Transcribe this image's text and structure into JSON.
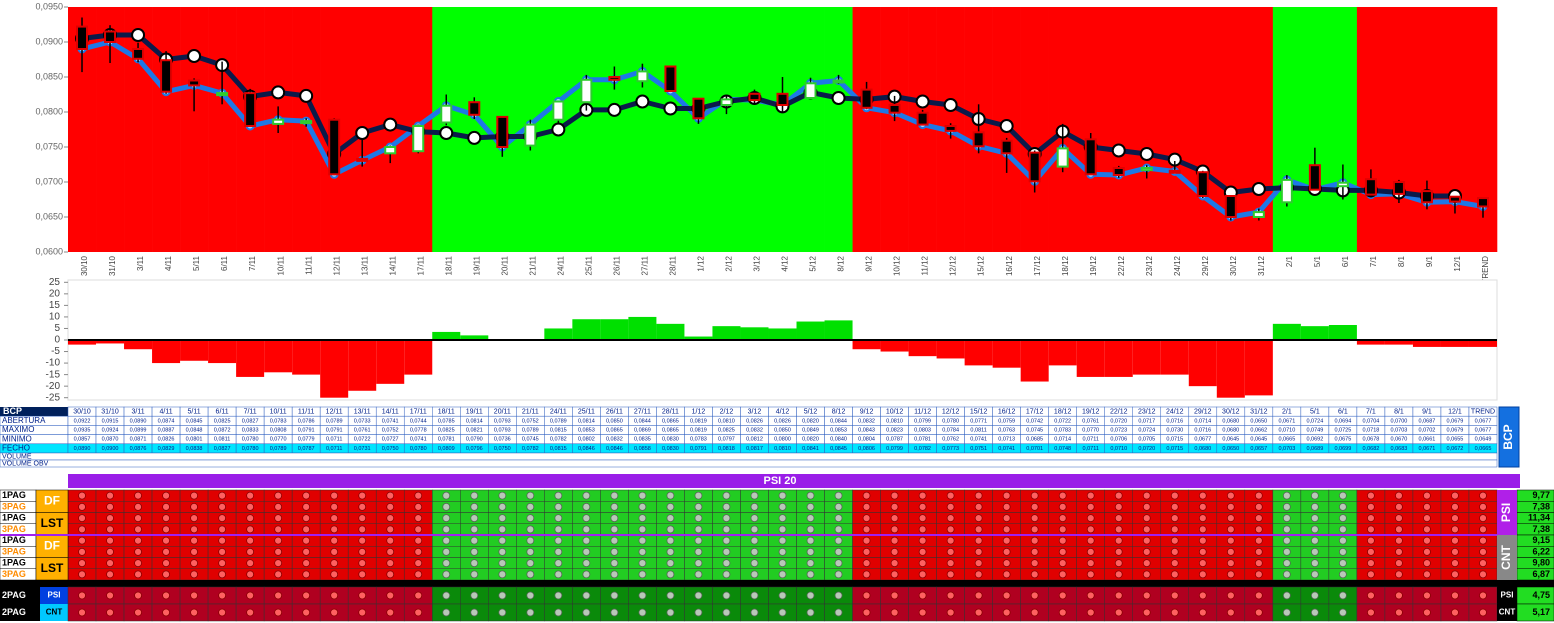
{
  "chart_data": [
    {
      "type": "candlestick",
      "categories": [
        "30/10",
        "31/10",
        "3/11",
        "4/11",
        "5/11",
        "6/11",
        "7/11",
        "10/11",
        "11/11",
        "12/11",
        "13/11",
        "14/11",
        "17/11",
        "18/11",
        "19/11",
        "20/11",
        "21/11",
        "24/11",
        "25/11",
        "26/11",
        "27/11",
        "28/11",
        "1/12",
        "2/12",
        "3/12",
        "4/12",
        "5/12",
        "8/12",
        "9/12",
        "10/12",
        "11/12",
        "12/12",
        "15/12",
        "16/12",
        "17/12",
        "18/12",
        "19/12",
        "22/12",
        "23/12",
        "24/12",
        "29/12",
        "30/12",
        "31/12",
        "2/1",
        "5/1",
        "6/1",
        "7/1",
        "8/1",
        "9/1",
        "12/1",
        "TREND"
      ],
      "series": [
        {
          "name": "ABERTURA",
          "values": [
            0.0922,
            0.0915,
            0.089,
            0.0874,
            0.0845,
            0.0825,
            0.0827,
            0.0783,
            0.0786,
            0.0789,
            0.0733,
            0.0741,
            0.0744,
            0.0785,
            0.0814,
            0.0793,
            0.0752,
            0.0789,
            0.0814,
            0.085,
            0.0844,
            0.0865,
            0.0819,
            0.081,
            0.0826,
            0.0826,
            0.082,
            0.0844,
            0.0832,
            0.081,
            0.0799,
            0.078,
            0.0771,
            0.0759,
            0.0742,
            0.0722,
            0.0761,
            0.072,
            0.0717,
            0.0716,
            0.0714,
            0.068,
            0.065,
            0.0671,
            0.0724,
            0.0694,
            0.0704,
            0.07,
            0.0687,
            0.0679,
            0.0677
          ],
          "value_labels": [
            "0,0922",
            "0,0915",
            "0,0890",
            "0,0874",
            "0,0845",
            "0,0825",
            "0,0827",
            "0,0783",
            "0,0786",
            "0,0789",
            "0,0733",
            "0,0741",
            "0,0744",
            "0,0785",
            "0,0814",
            "0,0793",
            "0,0752",
            "0,0789",
            "0,0814",
            "0,0850",
            "0,0844",
            "0,0865",
            "0,0819",
            "0,0810",
            "0,0826",
            "0,0826",
            "0,0820",
            "0,0844",
            "0,0832",
            "0,0810",
            "0,0799",
            "0,0780",
            "0,0771",
            "0,0759",
            "0,0742",
            "0,0722",
            "0,0761",
            "0,0720",
            "0,0717",
            "0,0716",
            "0,0714",
            "0,0680",
            "0,0650",
            "0,0671",
            "0,0724",
            "0,0694",
            "0,0704",
            "0,0700",
            "0,0687",
            "0,0679",
            "0,0677"
          ]
        },
        {
          "name": "MAXIMO",
          "values": [
            0.0935,
            0.0924,
            0.0899,
            0.0887,
            0.0848,
            0.0872,
            0.0833,
            0.0808,
            0.0791,
            0.0791,
            0.0761,
            0.0752,
            0.0778,
            0.0825,
            0.0821,
            0.0793,
            0.0789,
            0.0815,
            0.0853,
            0.0865,
            0.0869,
            0.0865,
            0.0819,
            0.0825,
            0.0832,
            0.085,
            0.0849,
            0.0853,
            0.0843,
            0.0823,
            0.0803,
            0.0784,
            0.0811,
            0.0763,
            0.0745,
            0.0783,
            0.077,
            0.0723,
            0.0724,
            0.073,
            0.0716,
            0.068,
            0.0662,
            0.071,
            0.0749,
            0.0725,
            0.0718,
            0.0703,
            0.0702,
            0.0679,
            0.0677
          ],
          "value_labels": [
            "0,0935",
            "0,0924",
            "0,0899",
            "0,0887",
            "0,0848",
            "0,0872",
            "0,0833",
            "0,0808",
            "0,0791",
            "0,0791",
            "0,0761",
            "0,0752",
            "0,0778",
            "0,0825",
            "0,0821",
            "0,0793",
            "0,0789",
            "0,0815",
            "0,0853",
            "0,0865",
            "0,0869",
            "0,0865",
            "0,0819",
            "0,0825",
            "0,0832",
            "0,0850",
            "0,0849",
            "0,0853",
            "0,0843",
            "0,0823",
            "0,0803",
            "0,0784",
            "0,0811",
            "0,0763",
            "0,0745",
            "0,0783",
            "0,0770",
            "0,0723",
            "0,0724",
            "0,0730",
            "0,0716",
            "0,0680",
            "0,0662",
            "0,0710",
            "0,0749",
            "0,0725",
            "0,0718",
            "0,0703",
            "0,0702",
            "0,0679",
            "0,0677"
          ]
        },
        {
          "name": "MINIMO",
          "values": [
            0.0857,
            0.087,
            0.0871,
            0.0826,
            0.0801,
            0.0811,
            0.078,
            0.077,
            0.0779,
            0.0711,
            0.0722,
            0.0727,
            0.0741,
            0.0781,
            0.079,
            0.0736,
            0.0745,
            0.0782,
            0.0802,
            0.0832,
            0.0835,
            0.083,
            0.0783,
            0.0797,
            0.0812,
            0.08,
            0.082,
            0.084,
            0.0804,
            0.0787,
            0.0781,
            0.0762,
            0.0741,
            0.0713,
            0.0685,
            0.0714,
            0.0711,
            0.0706,
            0.0705,
            0.0715,
            0.0677,
            0.0645,
            0.0645,
            0.0665,
            0.0692,
            0.0675,
            0.0678,
            0.067,
            0.0661,
            0.0655,
            0.0649
          ],
          "value_labels": [
            "0,0857",
            "0,0870",
            "0,0871",
            "0,0826",
            "0,0801",
            "0,0811",
            "0,0780",
            "0,0770",
            "0,0779",
            "0,0711",
            "0,0722",
            "0,0727",
            "0,0741",
            "0,0781",
            "0,0790",
            "0,0736",
            "0,0745",
            "0,0782",
            "0,0802",
            "0,0832",
            "0,0835",
            "0,0830",
            "0,0783",
            "0,0797",
            "0,0812",
            "0,0800",
            "0,0820",
            "0,0840",
            "0,0804",
            "0,0787",
            "0,0781",
            "0,0762",
            "0,0741",
            "0,0713",
            "0,0685",
            "0,0714",
            "0,0711",
            "0,0706",
            "0,0705",
            "0,0715",
            "0,0677",
            "0,0645",
            "0,0645",
            "0,0665",
            "0,0692",
            "0,0675",
            "0,0678",
            "0,0670",
            "0,0661",
            "0,0655",
            "0,0649"
          ]
        },
        {
          "name": "FECHO",
          "color": "#1e78e6",
          "values": [
            0.089,
            0.09,
            0.0876,
            0.0829,
            0.0838,
            0.0827,
            0.078,
            0.0789,
            0.0787,
            0.0711,
            0.0731,
            0.075,
            0.078,
            0.0809,
            0.0796,
            0.075,
            0.0782,
            0.0815,
            0.0846,
            0.0846,
            0.0858,
            0.083,
            0.0791,
            0.0818,
            0.0817,
            0.081,
            0.0841,
            0.0845,
            0.0806,
            0.0799,
            0.0782,
            0.0773,
            0.0751,
            0.0741,
            0.0701,
            0.0748,
            0.0711,
            0.071,
            0.072,
            0.0715,
            0.068,
            0.065,
            0.0657,
            0.0703,
            0.0689,
            0.0699,
            0.0682,
            0.0683,
            0.0671,
            0.0672,
            0.0665
          ],
          "value_labels": [
            "0,0890",
            "0,0900",
            "0,0876",
            "0,0829",
            "0,0838",
            "0,0827",
            "0,0780",
            "0,0789",
            "0,0787",
            "0,0711",
            "0,0731",
            "0,0750",
            "0,0780",
            "0,0809",
            "0,0796",
            "0,0750",
            "0,0782",
            "0,0815",
            "0,0846",
            "0,0846",
            "0,0858",
            "0,0830",
            "0,0791",
            "0,0818",
            "0,0817",
            "0,0810",
            "0,0841",
            "0,0845",
            "0,0806",
            "0,0799",
            "0,0782",
            "0,0773",
            "0,0751",
            "0,0741",
            "0,0701",
            "0,0748",
            "0,0711",
            "0,0710",
            "0,0720",
            "0,0715",
            "0,0680",
            "0,0650",
            "0,0657",
            "0,0703",
            "0,0689",
            "0,0699",
            "0,0682",
            "0,0683",
            "0,0671",
            "0,0672",
            "0,0665"
          ]
        }
      ],
      "trend_line": {
        "color": "#0b1a4a",
        "values": [
          0.0905,
          0.091,
          0.091,
          0.0875,
          0.088,
          0.0867,
          0.0822,
          0.0828,
          0.0823,
          0.074,
          0.077,
          0.0782,
          0.0772,
          0.077,
          0.0763,
          0.0765,
          0.0765,
          0.0775,
          0.0803,
          0.0803,
          0.0815,
          0.0805,
          0.0805,
          0.0815,
          0.082,
          0.0808,
          0.0828,
          0.082,
          0.0818,
          0.0822,
          0.0815,
          0.081,
          0.079,
          0.078,
          0.074,
          0.0772,
          0.075,
          0.0745,
          0.074,
          0.0732,
          0.0715,
          0.0685,
          0.069,
          0.0692,
          0.069,
          0.0688,
          0.0688,
          0.0685,
          0.068,
          0.068,
          null
        ]
      },
      "band_colors": [
        "#ff0000",
        "#ff0000",
        "#ff0000",
        "#ff0000",
        "#ff0000",
        "#ff0000",
        "#ff0000",
        "#ff0000",
        "#ff0000",
        "#ff0000",
        "#ff0000",
        "#ff0000",
        "#ff0000",
        "#00ff00",
        "#00ff00",
        "#00ff00",
        "#00ff00",
        "#00ff00",
        "#00ff00",
        "#00ff00",
        "#00ff00",
        "#00ff00",
        "#00ff00",
        "#00ff00",
        "#00ff00",
        "#00ff00",
        "#00ff00",
        "#00ff00",
        "#ff0000",
        "#ff0000",
        "#ff0000",
        "#ff0000",
        "#ff0000",
        "#ff0000",
        "#ff0000",
        "#ff0000",
        "#ff0000",
        "#ff0000",
        "#ff0000",
        "#ff0000",
        "#ff0000",
        "#ff0000",
        "#ff0000",
        "#00ff00",
        "#00ff00",
        "#00ff00",
        "#ff0000",
        "#ff0000",
        "#ff0000",
        "#ff0000",
        "#ff0000"
      ],
      "ylim": [
        0.06,
        0.095
      ],
      "yticks": [
        {
          "value": 0.095,
          "label": "0,0950"
        },
        {
          "value": 0.09,
          "label": "0,0900"
        },
        {
          "value": 0.085,
          "label": "0,0850"
        },
        {
          "value": 0.08,
          "label": "0,0800"
        },
        {
          "value": 0.075,
          "label": "0,0750"
        },
        {
          "value": 0.07,
          "label": "0,0700"
        },
        {
          "value": 0.065,
          "label": "0,0650"
        },
        {
          "value": 0.06,
          "label": "0,0600"
        }
      ]
    },
    {
      "type": "bar",
      "values": [
        -2,
        -1.5,
        -4,
        -10,
        -9,
        -10,
        -16,
        -14,
        -15,
        -25,
        -22,
        -19,
        -15,
        3.5,
        2,
        0,
        0,
        5,
        9,
        9,
        10,
        7,
        1.5,
        6,
        5.5,
        5,
        8,
        8.5,
        -4,
        -5,
        -7,
        -8,
        -11,
        -12,
        -18,
        -11,
        -16,
        -16,
        -15,
        -15,
        -20,
        -25,
        -24,
        7,
        6,
        6.5,
        -2,
        -2,
        -3,
        -3,
        -3
      ],
      "colors": {
        "positive": "#00e000",
        "negative": "#ff0000"
      },
      "ylim": [
        -26,
        26
      ],
      "yticks": [
        25,
        20,
        15,
        10,
        5,
        0,
        -5,
        -10,
        -15,
        -20,
        -25
      ]
    }
  ],
  "table": {
    "title": "BCP",
    "extra_rows": [
      "VOLUME",
      "VOLUME OBV"
    ],
    "side_label": "BCP"
  },
  "signals": {
    "title": "PSI 20",
    "rows": [
      "1PAG",
      "3PAG",
      "1PAG",
      "3PAG",
      "1PAG",
      "3PAG",
      "1PAG",
      "3PAG"
    ],
    "tags": [
      "DF",
      "LST",
      "DF",
      "LST"
    ],
    "values": [
      "9,77",
      "7,38",
      "11,34",
      "7,38",
      "9,15",
      "6,22",
      "9,80",
      "6,87"
    ],
    "side_labels": [
      "PSI",
      "CNT"
    ],
    "bottom_rows": [
      {
        "label": "2PAG",
        "tag": "PSI",
        "value": "4,75"
      },
      {
        "label": "2PAG",
        "tag": "CNT",
        "value": "5,17"
      }
    ]
  }
}
